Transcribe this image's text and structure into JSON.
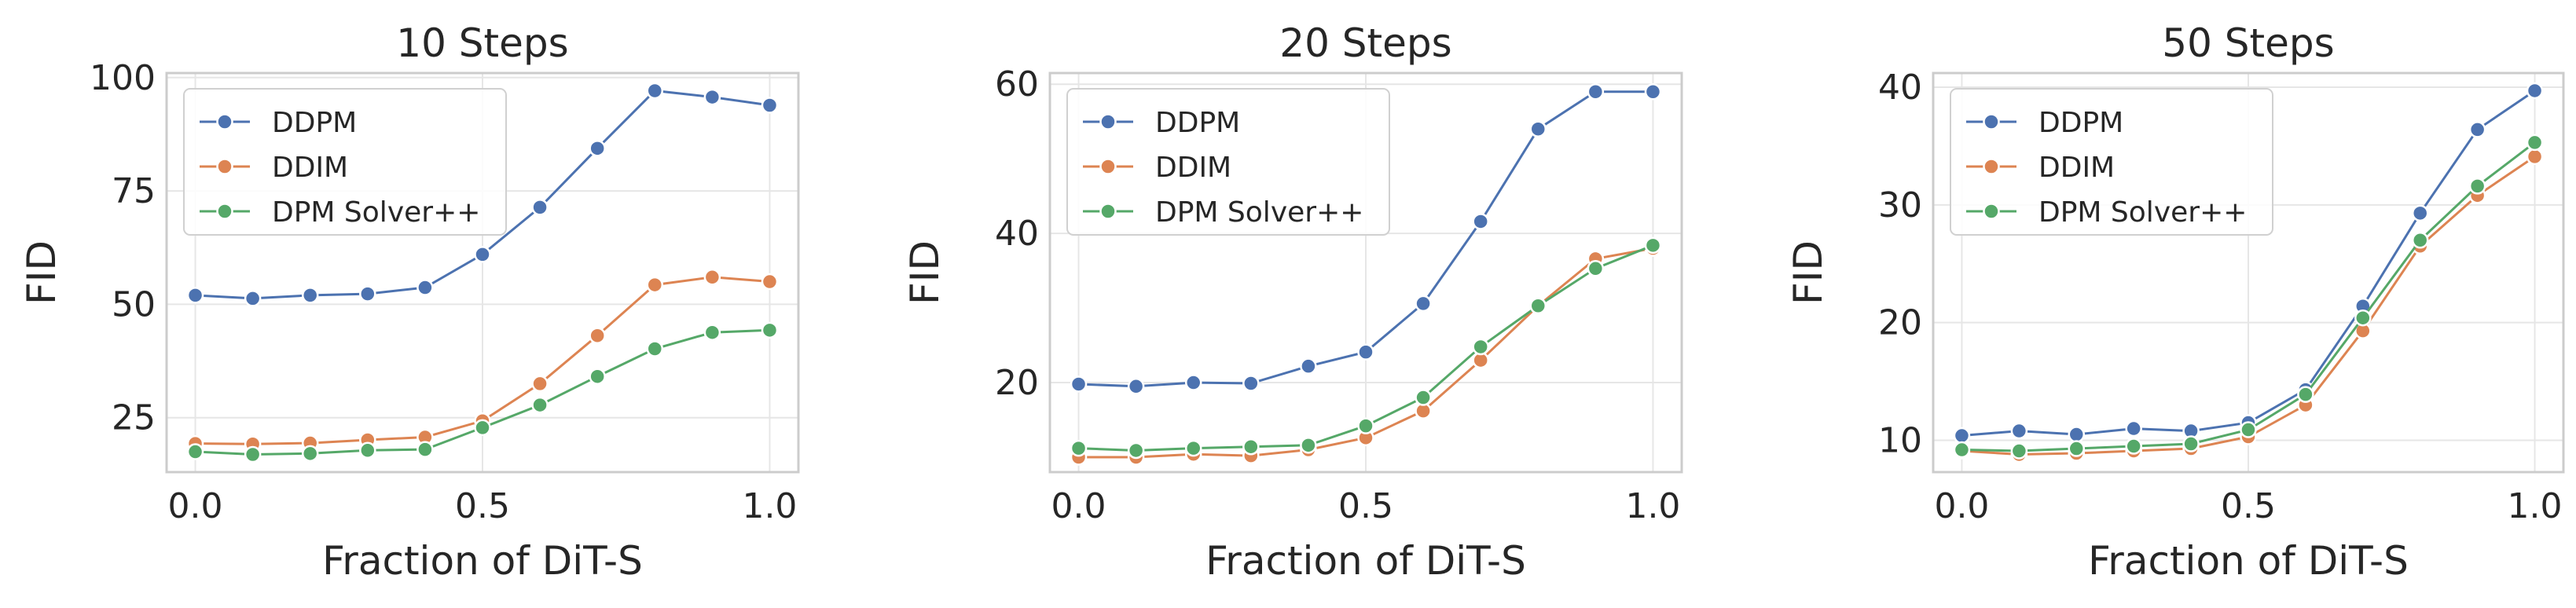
{
  "colors": {
    "DDPM": "#4c72b0",
    "DDIM": "#dd8452",
    "DPM Solver++": "#55a868"
  },
  "chart_data": [
    {
      "type": "line",
      "title": "10 Steps",
      "xlabel": "Fraction of DiT-S",
      "ylabel": "FID",
      "xlim": [
        -0.05,
        1.05
      ],
      "ylim": [
        13,
        101
      ],
      "xticks": [
        0.0,
        0.5,
        1.0
      ],
      "xtick_labels": [
        "0.0",
        "0.5",
        "1.0"
      ],
      "yticks": [
        25,
        50,
        75,
        100
      ],
      "ytick_labels": [
        "25",
        "50",
        "75",
        "100"
      ],
      "grid": true,
      "legend_position": "top-left",
      "x": [
        0.0,
        0.1,
        0.2,
        0.3,
        0.4,
        0.5,
        0.6,
        0.7,
        0.8,
        0.9,
        1.0
      ],
      "series": [
        {
          "name": "DDPM",
          "values": [
            52.0,
            51.3,
            52.0,
            52.3,
            53.7,
            61.0,
            71.4,
            84.4,
            97.1,
            95.7,
            93.9
          ]
        },
        {
          "name": "DDIM",
          "values": [
            19.3,
            19.2,
            19.4,
            20.1,
            20.7,
            24.3,
            32.5,
            43.1,
            54.3,
            56.0,
            55.0
          ]
        },
        {
          "name": "DPM Solver++",
          "values": [
            17.5,
            16.9,
            17.1,
            17.8,
            18.0,
            22.8,
            27.8,
            34.1,
            40.2,
            43.8,
            44.3
          ]
        }
      ]
    },
    {
      "type": "line",
      "title": "20 Steps",
      "xlabel": "Fraction of DiT-S",
      "ylabel": "FID",
      "xlim": [
        -0.05,
        1.05
      ],
      "ylim": [
        8,
        61.5
      ],
      "xticks": [
        0.0,
        0.5,
        1.0
      ],
      "xtick_labels": [
        "0.0",
        "0.5",
        "1.0"
      ],
      "yticks": [
        20,
        40,
        60
      ],
      "ytick_labels": [
        "20",
        "40",
        "60"
      ],
      "grid": true,
      "legend_position": "top-left",
      "x": [
        0.0,
        0.1,
        0.2,
        0.3,
        0.4,
        0.5,
        0.6,
        0.7,
        0.8,
        0.9,
        1.0
      ],
      "series": [
        {
          "name": "DDPM",
          "values": [
            19.8,
            19.5,
            20.0,
            19.9,
            22.2,
            24.1,
            30.6,
            41.6,
            54.0,
            59.0,
            59.0
          ]
        },
        {
          "name": "DDIM",
          "values": [
            10.0,
            10.0,
            10.4,
            10.2,
            11.0,
            12.6,
            16.2,
            23.0,
            30.3,
            36.6,
            38.0
          ]
        },
        {
          "name": "DPM Solver++",
          "values": [
            11.2,
            10.9,
            11.2,
            11.4,
            11.6,
            14.2,
            18.0,
            24.8,
            30.3,
            35.3,
            38.4
          ]
        }
      ]
    },
    {
      "type": "line",
      "title": "50 Steps",
      "xlabel": "Fraction of DiT-S",
      "ylabel": "FID",
      "xlim": [
        -0.05,
        1.05
      ],
      "ylim": [
        7.3,
        41.2
      ],
      "xticks": [
        0.0,
        0.5,
        1.0
      ],
      "xtick_labels": [
        "0.0",
        "0.5",
        "1.0"
      ],
      "yticks": [
        10,
        20,
        30,
        40
      ],
      "ytick_labels": [
        "10",
        "20",
        "30",
        "40"
      ],
      "grid": true,
      "legend_position": "top-left",
      "x": [
        0.0,
        0.1,
        0.2,
        0.3,
        0.4,
        0.5,
        0.6,
        0.7,
        0.8,
        0.9,
        1.0
      ],
      "series": [
        {
          "name": "DDPM",
          "values": [
            10.4,
            10.8,
            10.5,
            11.0,
            10.8,
            11.5,
            14.3,
            21.4,
            29.3,
            36.4,
            39.7
          ]
        },
        {
          "name": "DDIM",
          "values": [
            9.1,
            8.8,
            8.9,
            9.1,
            9.3,
            10.3,
            13.0,
            19.3,
            26.5,
            30.8,
            34.1
          ]
        },
        {
          "name": "DPM Solver++",
          "values": [
            9.2,
            9.1,
            9.3,
            9.5,
            9.7,
            10.9,
            13.9,
            20.4,
            27.0,
            31.6,
            35.3
          ]
        }
      ]
    }
  ]
}
